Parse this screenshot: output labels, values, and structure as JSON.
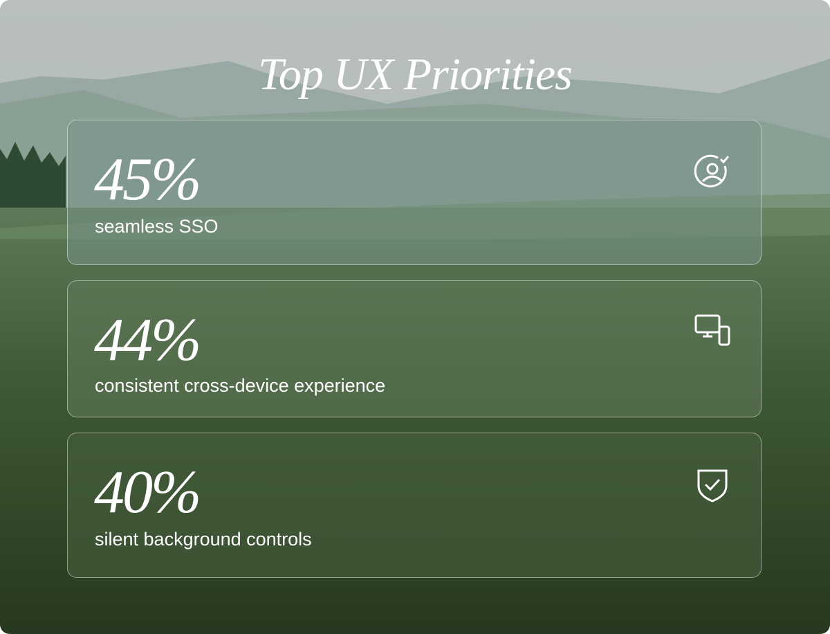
{
  "header": {
    "title": "Top UX Priorities"
  },
  "cards": [
    {
      "stat": "45%",
      "label": "seamless SSO"
    },
    {
      "stat": "44%",
      "label": "consistent cross-device experience"
    },
    {
      "stat": "40%",
      "label": "silent background controls"
    }
  ]
}
